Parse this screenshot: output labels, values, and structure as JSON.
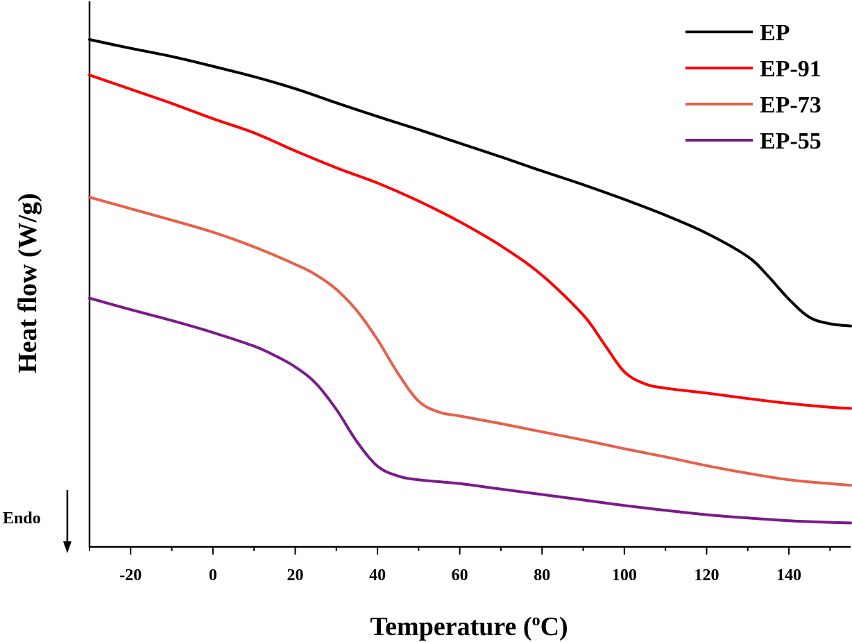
{
  "chart_data": {
    "type": "line",
    "xlabel_main": "Temperature (",
    "xlabel_sup": "o",
    "xlabel_end": "C)",
    "ylabel": "Heat flow (W/g)",
    "annotation": "Endo",
    "xlim": [
      -30,
      155
    ],
    "ylim": [
      0,
      100
    ],
    "x_ticks": [
      -20,
      0,
      20,
      40,
      60,
      80,
      100,
      120,
      140
    ],
    "legend_position": "top-right",
    "series": [
      {
        "name": "EP",
        "color": "#000000",
        "points": [
          [
            -30,
            93.0
          ],
          [
            -20,
            91.4
          ],
          [
            -10,
            89.9
          ],
          [
            0,
            88.1
          ],
          [
            10,
            86.2
          ],
          [
            20,
            84.0
          ],
          [
            30,
            81.4
          ],
          [
            40,
            78.9
          ],
          [
            50,
            76.5
          ],
          [
            60,
            74.0
          ],
          [
            70,
            71.5
          ],
          [
            80,
            68.9
          ],
          [
            90,
            66.4
          ],
          [
            100,
            63.7
          ],
          [
            110,
            60.8
          ],
          [
            120,
            57.5
          ],
          [
            130,
            53.2
          ],
          [
            135,
            49.6
          ],
          [
            140,
            45.4
          ],
          [
            145,
            42.1
          ],
          [
            150,
            40.9
          ],
          [
            155,
            40.5
          ]
        ]
      },
      {
        "name": "EP-91",
        "color": "#ff0000",
        "points": [
          [
            -30,
            86.5
          ],
          [
            -20,
            83.9
          ],
          [
            -10,
            81.3
          ],
          [
            0,
            78.5
          ],
          [
            10,
            75.9
          ],
          [
            20,
            72.6
          ],
          [
            30,
            69.5
          ],
          [
            40,
            66.7
          ],
          [
            50,
            63.4
          ],
          [
            60,
            59.6
          ],
          [
            70,
            55.2
          ],
          [
            80,
            49.8
          ],
          [
            90,
            42.5
          ],
          [
            95,
            37.3
          ],
          [
            100,
            32.1
          ],
          [
            105,
            29.9
          ],
          [
            110,
            29.1
          ],
          [
            120,
            28.2
          ],
          [
            130,
            27.2
          ],
          [
            140,
            26.3
          ],
          [
            150,
            25.6
          ],
          [
            155,
            25.4
          ]
        ]
      },
      {
        "name": "EP-73",
        "color": "#e8604a",
        "points": [
          [
            -30,
            64.1
          ],
          [
            -20,
            62.0
          ],
          [
            -10,
            59.9
          ],
          [
            0,
            57.7
          ],
          [
            10,
            55.0
          ],
          [
            20,
            51.8
          ],
          [
            25,
            49.9
          ],
          [
            30,
            47.2
          ],
          [
            35,
            43.3
          ],
          [
            40,
            38.0
          ],
          [
            45,
            31.8
          ],
          [
            50,
            26.7
          ],
          [
            55,
            24.7
          ],
          [
            60,
            24.0
          ],
          [
            70,
            22.6
          ],
          [
            80,
            21.1
          ],
          [
            90,
            19.6
          ],
          [
            100,
            18.0
          ],
          [
            110,
            16.5
          ],
          [
            120,
            14.9
          ],
          [
            130,
            13.5
          ],
          [
            140,
            12.3
          ],
          [
            150,
            11.6
          ],
          [
            155,
            11.3
          ]
        ]
      },
      {
        "name": "EP-55",
        "color": "#7b1a8c",
        "points": [
          [
            -30,
            45.6
          ],
          [
            -20,
            43.5
          ],
          [
            -10,
            41.5
          ],
          [
            0,
            39.3
          ],
          [
            10,
            36.8
          ],
          [
            15,
            35.1
          ],
          [
            20,
            33.0
          ],
          [
            25,
            30.0
          ],
          [
            30,
            25.2
          ],
          [
            35,
            19.3
          ],
          [
            40,
            14.8
          ],
          [
            45,
            13.0
          ],
          [
            50,
            12.3
          ],
          [
            60,
            11.6
          ],
          [
            70,
            10.6
          ],
          [
            80,
            9.6
          ],
          [
            90,
            8.6
          ],
          [
            100,
            7.6
          ],
          [
            110,
            6.7
          ],
          [
            120,
            5.9
          ],
          [
            130,
            5.3
          ],
          [
            140,
            4.8
          ],
          [
            150,
            4.5
          ],
          [
            155,
            4.4
          ]
        ]
      }
    ]
  }
}
